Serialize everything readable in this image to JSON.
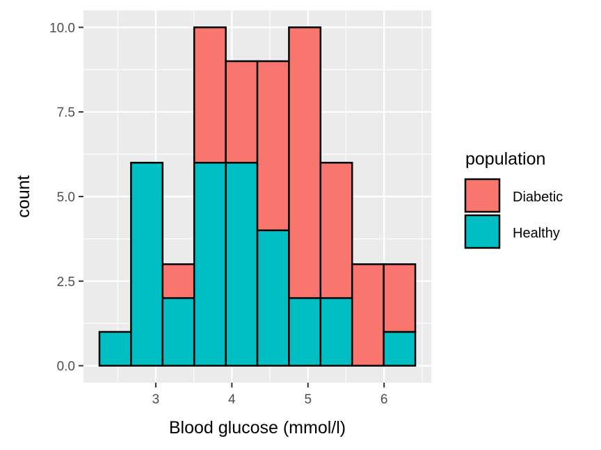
{
  "chart_data": {
    "type": "bar",
    "subtype": "stacked-histogram",
    "title": "",
    "xlabel": "Blood glucose (mmol/l)",
    "ylabel": "count",
    "bins": [
      {
        "start": 2.26,
        "end": 2.675
      },
      {
        "start": 2.675,
        "end": 3.09
      },
      {
        "start": 3.09,
        "end": 3.505
      },
      {
        "start": 3.505,
        "end": 3.92
      },
      {
        "start": 3.92,
        "end": 4.335
      },
      {
        "start": 4.335,
        "end": 4.75
      },
      {
        "start": 4.75,
        "end": 5.165
      },
      {
        "start": 5.165,
        "end": 5.58
      },
      {
        "start": 5.58,
        "end": 5.995
      },
      {
        "start": 5.995,
        "end": 6.41
      }
    ],
    "series": [
      {
        "name": "Healthy",
        "color": "#00BFC4",
        "values": [
          1,
          6,
          2,
          6,
          6,
          4,
          2,
          2,
          0,
          1
        ]
      },
      {
        "name": "Diabetic",
        "color": "#F8766D",
        "values": [
          0,
          0,
          1,
          4,
          3,
          5,
          8,
          4,
          3,
          2
        ]
      }
    ],
    "xlim": [
      2.05,
      6.62
    ],
    "ylim": [
      -0.5,
      10.5
    ],
    "x_ticks": [
      3,
      4,
      5,
      6
    ],
    "x_tick_labels": [
      "3",
      "4",
      "5",
      "6"
    ],
    "y_ticks": [
      0,
      2.5,
      5,
      7.5,
      10
    ],
    "y_tick_labels": [
      "0.0",
      "2.5",
      "5.0",
      "7.5",
      "10.0"
    ],
    "legend": {
      "title": "population",
      "placement": "right",
      "entries": [
        {
          "label": "Diabetic",
          "color": "#F8766D"
        },
        {
          "label": "Healthy",
          "color": "#00BFC4"
        }
      ]
    },
    "panel_background": "#EBEBEB",
    "grid": true,
    "grid_color": "#FFFFFF"
  }
}
